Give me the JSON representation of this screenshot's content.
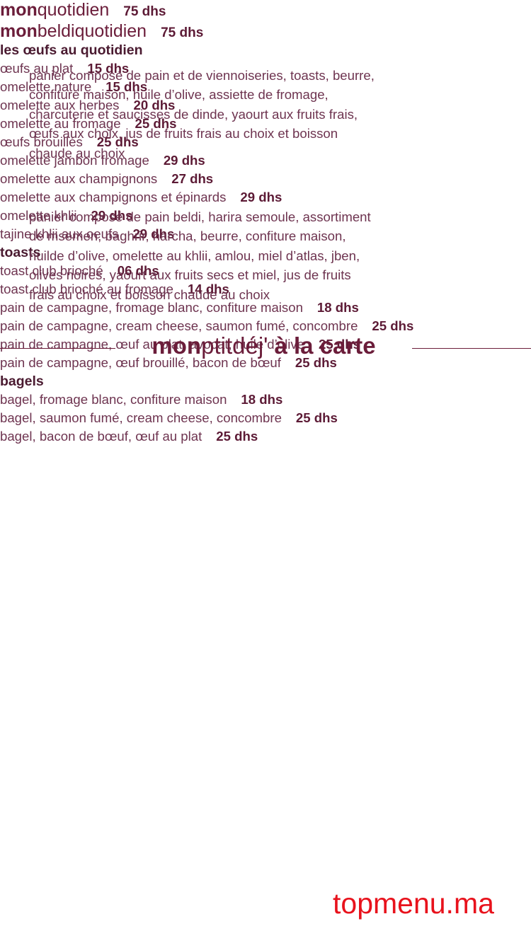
{
  "formulas": [
    {
      "title_bold": "mon",
      "title_light": "quotidien",
      "price": "75 dhs",
      "description": [
        "panier composé de pain et de viennoiseries, toasts, beurre,",
        "confiture maison, huile d’olive, assiette de fromage,",
        "charcuterie et saucisses de dinde, yaourt aux fruits frais,",
        "œufs aux choix, jus de fruits frais au choix et boisson",
        "chaude au choix"
      ]
    },
    {
      "title_bold": "mon",
      "title_light": "beldiquotidien",
      "price": "75 dhs",
      "description": [
        "panier composé de pain beldi, harira semoule, assortiment",
        "de msemen, baghrir, harcha, beurre, confiture maison,",
        "huilde d’olive, omelette au khlii, amlou, miel d’atlas, jben,",
        "olives noires, yaourt aux fruits secs et miel, jus de fruits",
        "frais au choix et boisson chaude au choix"
      ]
    }
  ],
  "carte": {
    "title_bold": "mon",
    "title_light": "ptitdéj'",
    "title_rest": "à la carte"
  },
  "sections": [
    {
      "name": "les œufs au quotidien",
      "items": [
        {
          "name": "œufs au plat",
          "price": "15 dhs"
        },
        {
          "name": "omelette nature",
          "price": "15 dhs"
        },
        {
          "name": "omelette aux herbes",
          "price": "20 dhs"
        },
        {
          "name": "omelette au fromage",
          "price": "25 dhs"
        },
        {
          "name": "œufs brouillés",
          "price": "25 dhs"
        },
        {
          "name": "omelette jambon fromage",
          "price": "29 dhs"
        },
        {
          "name": "omelette aux champignons",
          "price": "27 dhs"
        },
        {
          "name": "omelette aux champignons et épinards",
          "price": "29 dhs"
        },
        {
          "name": "omelette khlii",
          "price": "29 dhs"
        },
        {
          "name": "tajine khlii aux oeufs",
          "price": "29 dhs"
        }
      ]
    },
    {
      "name": "toasts",
      "items": [
        {
          "name": "toast club brioché",
          "price": "06 dhs"
        },
        {
          "name": "toast club brioché au fromage",
          "price": "14 dhs"
        },
        {
          "name": "pain de campagne, fromage blanc, confiture maison",
          "price": "18 dhs"
        },
        {
          "name": "pain de campagne, cream cheese, saumon fumé, concombre",
          "price": "25 dhs"
        },
        {
          "name": "pain de campagne, œuf au plat, avocat, huile d’olive",
          "price": "25 dhs"
        },
        {
          "name": "pain de campagne, œuf brouillé, bacon de bœuf",
          "price": "25 dhs"
        }
      ]
    },
    {
      "name": "bagels",
      "items": [
        {
          "name": "bagel, fromage blanc, confiture maison",
          "price": "18 dhs"
        },
        {
          "name": "bagel, saumon fumé, cream cheese, concombre",
          "price": "25 dhs"
        },
        {
          "name": "bagel, bacon de bœuf, œuf au plat",
          "price": "25 dhs"
        }
      ]
    }
  ],
  "watermark": "topmenu.ma"
}
